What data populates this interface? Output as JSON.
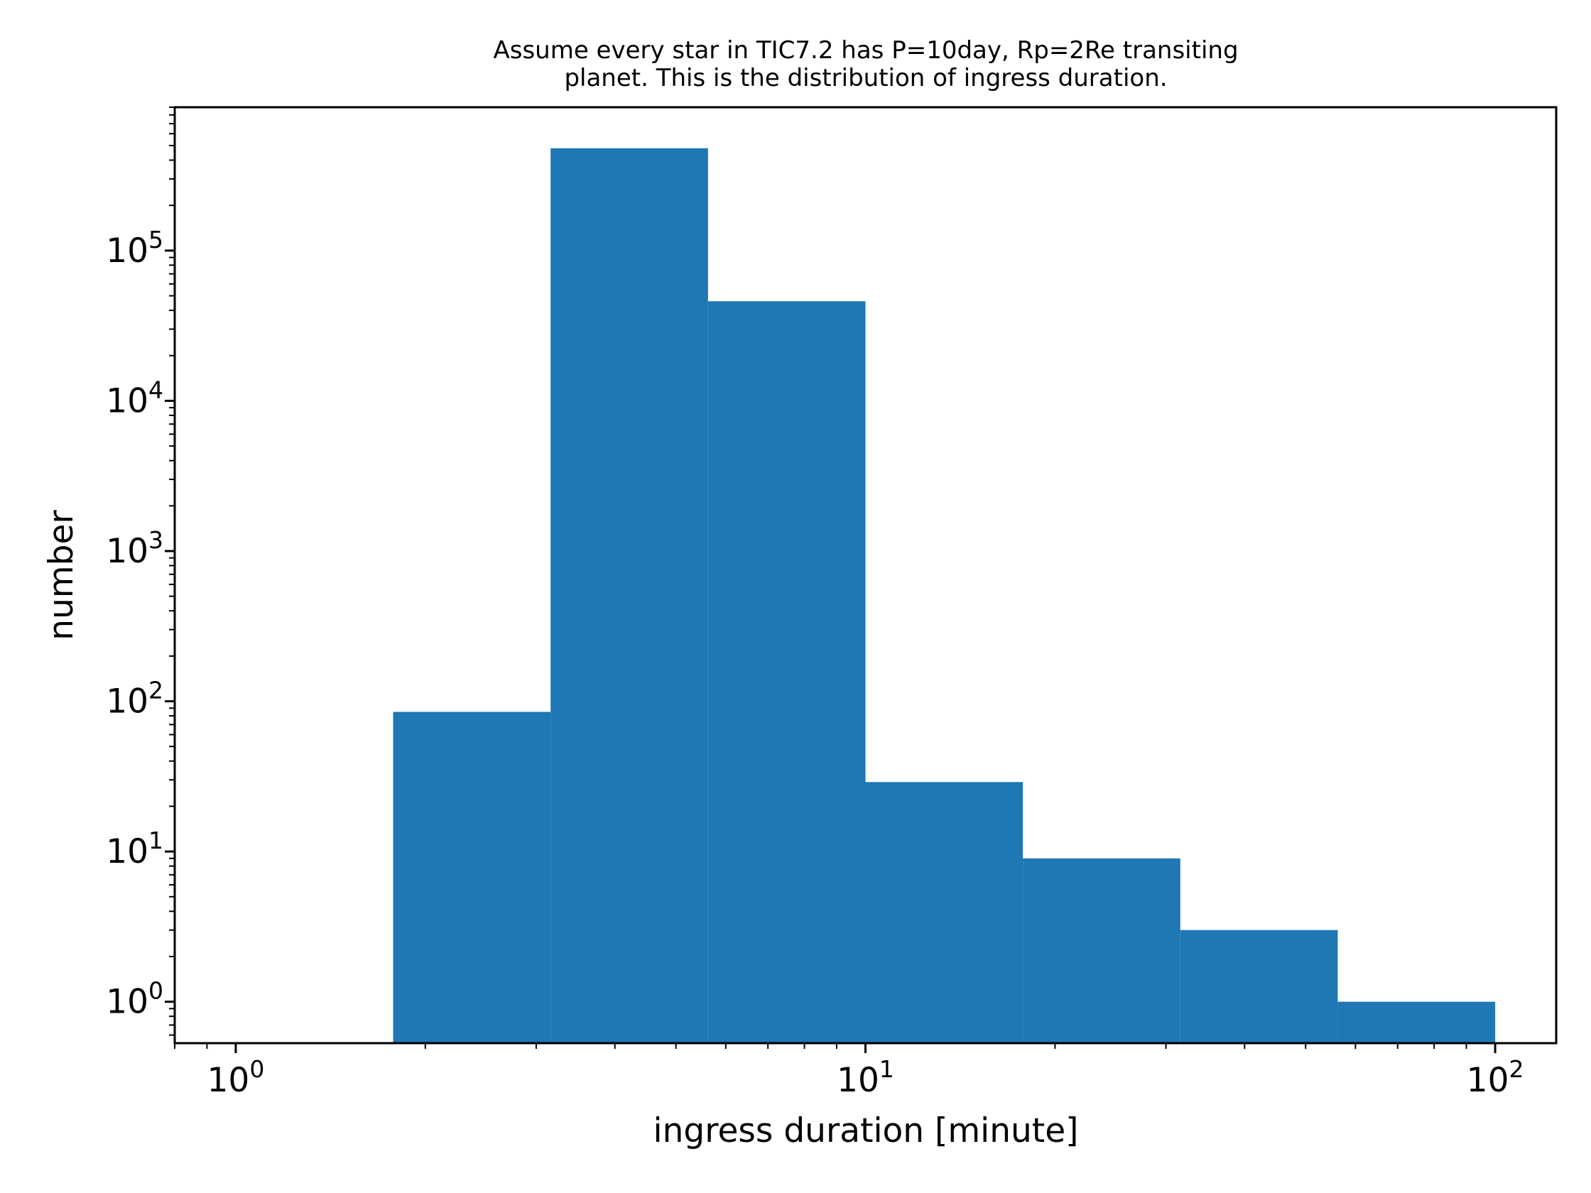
{
  "chart_data": {
    "type": "bar",
    "subtype": "histogram",
    "title_lines": [
      "Assume every star in TIC7.2 has P=10day, Rp=2Re transiting",
      "planet. This is the distribution of ingress duration."
    ],
    "xlabel": "ingress duration [minute]",
    "ylabel": "number",
    "xscale": "log",
    "yscale": "log",
    "xlim": [
      0.8,
      125
    ],
    "ylim": [
      0.53,
      900000
    ],
    "x_ticks": [
      {
        "base": "10",
        "exp": "0",
        "value": 1
      },
      {
        "base": "10",
        "exp": "1",
        "value": 10
      },
      {
        "base": "10",
        "exp": "2",
        "value": 100
      }
    ],
    "y_ticks": [
      {
        "base": "10",
        "exp": "0",
        "value": 1
      },
      {
        "base": "10",
        "exp": "1",
        "value": 10
      },
      {
        "base": "10",
        "exp": "2",
        "value": 100
      },
      {
        "base": "10",
        "exp": "3",
        "value": 1000
      },
      {
        "base": "10",
        "exp": "4",
        "value": 10000
      },
      {
        "base": "10",
        "exp": "5",
        "value": 100000
      }
    ],
    "bins": [
      {
        "x0": 1.778,
        "x1": 3.162,
        "count": 85
      },
      {
        "x0": 3.162,
        "x1": 5.623,
        "count": 480000
      },
      {
        "x0": 5.623,
        "x1": 10.0,
        "count": 46000
      },
      {
        "x0": 10.0,
        "x1": 17.78,
        "count": 29
      },
      {
        "x0": 17.78,
        "x1": 31.62,
        "count": 9
      },
      {
        "x0": 31.62,
        "x1": 56.23,
        "count": 3
      },
      {
        "x0": 56.23,
        "x1": 100.0,
        "count": 1
      }
    ],
    "bar_color": "#1f77b4",
    "grid": false,
    "legend": "none"
  }
}
